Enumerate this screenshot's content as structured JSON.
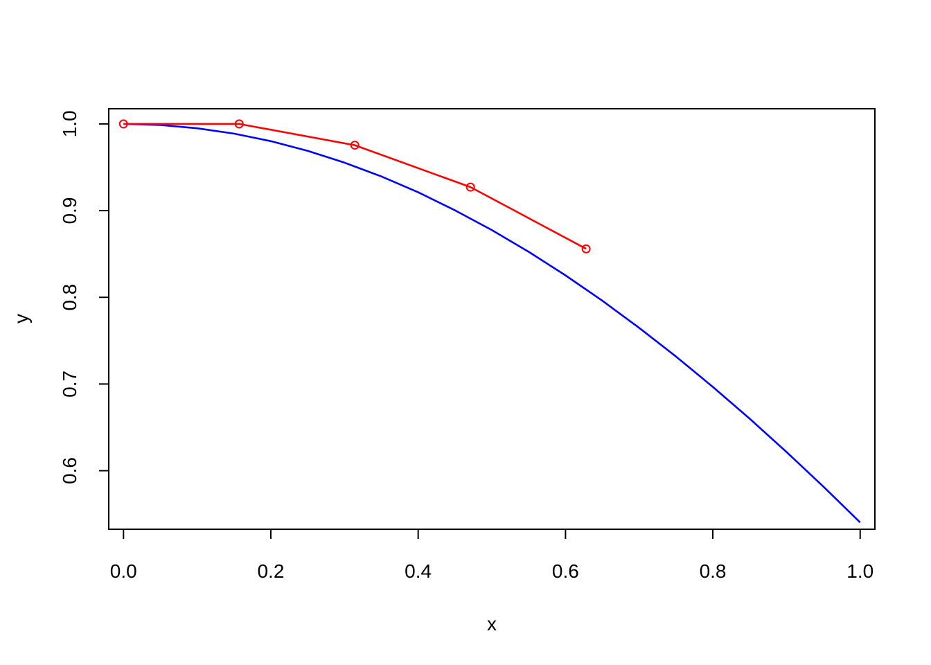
{
  "chart_data": {
    "type": "line",
    "title": "",
    "xlabel": "x",
    "ylabel": "y",
    "xlim": [
      -0.02,
      1.02
    ],
    "ylim": [
      0.5325,
      1.0175
    ],
    "x_ticks": [
      0.0,
      0.2,
      0.4,
      0.6,
      0.8,
      1.0
    ],
    "x_tick_labels": [
      "0.0",
      "0.2",
      "0.4",
      "0.6",
      "0.8",
      "1.0"
    ],
    "y_ticks": [
      0.6,
      0.7,
      0.8,
      0.9,
      1.0
    ],
    "y_tick_labels": [
      "0.6",
      "0.7",
      "0.8",
      "0.9",
      "1.0"
    ],
    "grid": false,
    "legend": "none",
    "series": [
      {
        "color": "#0000ff",
        "style": "line",
        "x": [
          0.0,
          0.05,
          0.1,
          0.15,
          0.2,
          0.25,
          0.3,
          0.35,
          0.4,
          0.45,
          0.5,
          0.55,
          0.6,
          0.65,
          0.7,
          0.75,
          0.8,
          0.85,
          0.9,
          0.95,
          1.0
        ],
        "y": [
          1.0,
          0.9988,
          0.995,
          0.9888,
          0.9801,
          0.9689,
          0.9553,
          0.9394,
          0.9211,
          0.9004,
          0.8776,
          0.8525,
          0.8253,
          0.7961,
          0.7648,
          0.7317,
          0.6967,
          0.66,
          0.6216,
          0.5817,
          0.5403
        ]
      },
      {
        "color": "#ff0000",
        "style": "line-points",
        "x": [
          0.0,
          0.157,
          0.314,
          0.471,
          0.628
        ],
        "y": [
          1.0,
          1.0,
          0.9755,
          0.9271,
          0.8559
        ]
      }
    ]
  }
}
